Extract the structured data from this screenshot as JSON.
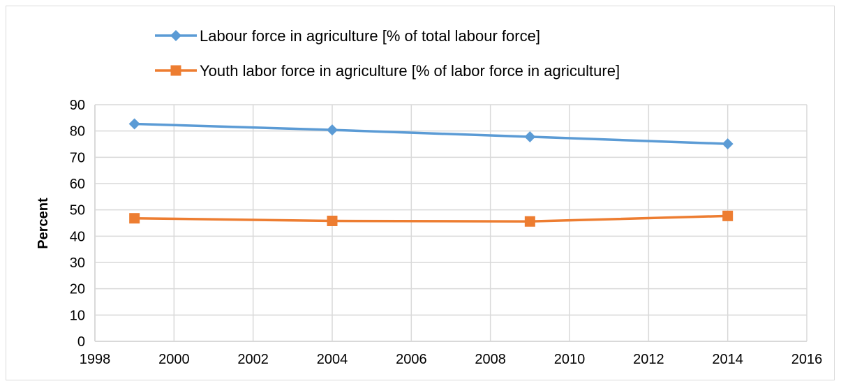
{
  "chart_data": {
    "type": "line",
    "title": "",
    "xlabel": "",
    "ylabel": "Percent",
    "xlim": [
      1998,
      2016
    ],
    "ylim": [
      0,
      90
    ],
    "x_ticks": [
      1998,
      2000,
      2002,
      2004,
      2006,
      2008,
      2010,
      2012,
      2014,
      2016
    ],
    "y_ticks": [
      0,
      10,
      20,
      30,
      40,
      50,
      60,
      70,
      80,
      90
    ],
    "grid": true,
    "legend_position": "top",
    "series": [
      {
        "name": "Labour force in agriculture [% of total labour force]",
        "color": "#5b9bd5",
        "marker": "diamond",
        "x": [
          1999,
          2004,
          2009,
          2014
        ],
        "y": [
          82.7,
          80.4,
          77.8,
          75.1
        ]
      },
      {
        "name": "Youth labor force in agriculture [% of labor force in agriculture]",
        "color": "#ed7d31",
        "marker": "square",
        "x": [
          1999,
          2004,
          2009,
          2014
        ],
        "y": [
          46.8,
          45.8,
          45.6,
          47.7
        ]
      }
    ]
  }
}
